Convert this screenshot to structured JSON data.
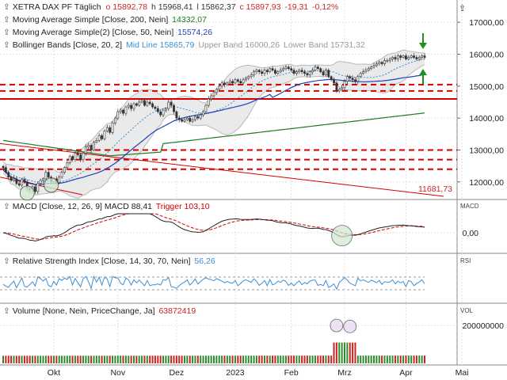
{
  "colors": {
    "price_up": "#2e7d32",
    "price_down": "#c62828",
    "sma200": "#1f7a1f",
    "sma50": "#1f3fbf",
    "boll_mid": "#3b8fd6",
    "boll_band": "#b8b8b8",
    "boll_fill": "#e6e6e6",
    "support_red": "#d40000",
    "macd": "#222222",
    "trigger": "#d40000",
    "rsi": "#3b8fd6",
    "volume_red": "#cc2222",
    "volume_green": "#2e8b2e",
    "arrow_green": "#1f8f1f",
    "highlight_fill": "#cfe8cf"
  },
  "legend": {
    "price_name": "XETRA DAX PF",
    "price_period": "Täglich",
    "price_o": "o 15892,78",
    "price_h": "h 15968,41",
    "price_l": "l 15862,37",
    "price_c": "c 15897,93",
    "price_chg": "-19,31",
    "price_pct": "-0,12%",
    "sma200_label": "Moving Average Simple",
    "sma200_params": "[Close, 200, Nein]",
    "sma200_value": "14332,07",
    "sma50_label": "Moving Average Simple(2)",
    "sma50_params": "[Close, 50, Nein]",
    "sma50_value": "15574,26",
    "boll_label": "Bollinger Bands",
    "boll_params": "[Close, 20, 2]",
    "boll_mid": "Mid Line 15865,79",
    "boll_upper": "Upper Band 16000,26",
    "boll_lower": "Lower Band 15731,32",
    "macd_label": "MACD",
    "macd_params": "[Close, 12, 26, 9]",
    "macd_value": "MACD 88,41",
    "macd_trigger": "Trigger 103,10",
    "rsi_label": "Relative Strength Index",
    "rsi_params": "[Close, 14, 30, 70, Nein]",
    "rsi_value": "56,26",
    "vol_label": "Volume",
    "vol_params": "[None, Nein, PriceChange, Ja]",
    "vol_value": "63872419"
  },
  "panel_tags": {
    "macd": "MACD",
    "rsi": "RSI",
    "vol": "VOL",
    "collapse": "⇪"
  },
  "annotations": {
    "trend_value": "11681,73"
  },
  "chart_data": {
    "type": "candlestick",
    "price_axis": {
      "ticks": [
        12000,
        13000,
        14000,
        15000,
        16000,
        17000
      ],
      "tick_labels": [
        "12000,00",
        "13000,00",
        "14000,00",
        "15000,00",
        "16000,00",
        "17000,00"
      ],
      "range": [
        11500,
        17500
      ]
    },
    "macd_axis": {
      "tick_labels": [
        "0,00"
      ],
      "ticks": [
        0
      ],
      "range": [
        -400,
        400
      ]
    },
    "volume_axis": {
      "tick_labels": [
        "200000000"
      ],
      "ticks": [
        200000000
      ],
      "range": [
        0,
        280000000
      ]
    },
    "rsi_axis": {
      "range": [
        0,
        100
      ],
      "levels": [
        30,
        70
      ]
    },
    "x_labels": [
      "Okt",
      "Nov",
      "Dez",
      "2023",
      "Feb",
      "Mrz",
      "Apr",
      "Mai"
    ],
    "x_label_day_index": [
      19,
      43,
      65,
      87,
      108,
      128,
      151,
      172
    ],
    "support_levels": [
      15050,
      14850,
      14600,
      13000,
      12700,
      12400
    ],
    "closes": [
      12450,
      12300,
      12150,
      12050,
      12100,
      11950,
      11900,
      12080,
      12000,
      11800,
      11750,
      11850,
      11700,
      11950,
      12050,
      12100,
      12300,
      12150,
      12000,
      12100,
      11980,
      12150,
      12300,
      12450,
      12600,
      12800,
      12700,
      12900,
      12850,
      12700,
      12900,
      13100,
      13150,
      13000,
      13250,
      13300,
      13450,
      13350,
      13600,
      13700,
      13550,
      13850,
      14000,
      14200,
      14250,
      14150,
      14350,
      14400,
      14300,
      14450,
      14400,
      14500,
      14550,
      14400,
      14500,
      14450,
      14350,
      14300,
      14200,
      14100,
      14250,
      14300,
      14500,
      14400,
      14200,
      14000,
      13950,
      13900,
      13950,
      14000,
      13900,
      13950,
      14050,
      14000,
      14100,
      14200,
      14400,
      14600,
      14700,
      14800,
      14900,
      15000,
      15100,
      15050,
      15100,
      15150,
      15100,
      15200,
      15150,
      15100,
      15200,
      15250,
      15300,
      15350,
      15450,
      15500,
      15450,
      15400,
      15500,
      15450,
      15550,
      15500,
      15400,
      15450,
      15500,
      15550,
      15600,
      15550,
      15500,
      15400,
      15450,
      15500,
      15450,
      15400,
      15350,
      15450,
      15500,
      15600,
      15550,
      15450,
      15350,
      15500,
      15300,
      15200,
      15100,
      14850,
      14900,
      14950,
      15150,
      15300,
      15250,
      15200,
      15150,
      15300,
      15400,
      15450,
      15500,
      15550,
      15600,
      15650,
      15700,
      15750,
      15700,
      15800,
      15800,
      15850,
      15900,
      15850,
      15950,
      15900,
      15950,
      15850,
      15900,
      15950,
      15900,
      15850,
      15900,
      15950,
      15900
    ]
  }
}
